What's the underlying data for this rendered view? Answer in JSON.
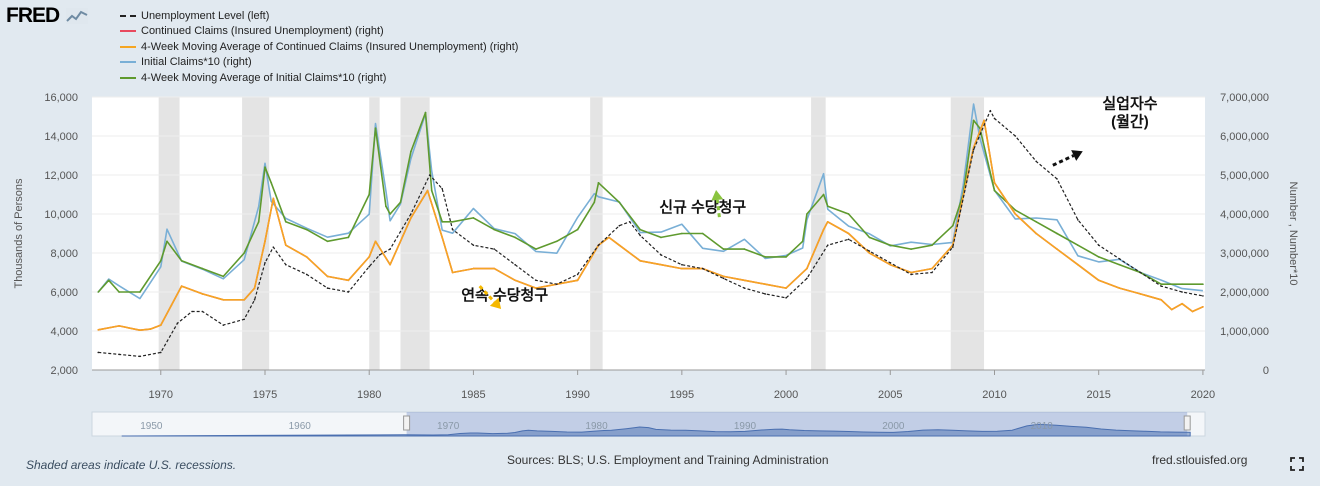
{
  "logo": "FRED",
  "legend": [
    {
      "label": "Unemployment Level (left)",
      "color": "#222222",
      "dash": true
    },
    {
      "label": "Continued Claims (Insured Unemployment) (right)",
      "color": "#e84a5f",
      "dash": false
    },
    {
      "label": "4-Week Moving Average of Continued Claims (Insured Unemployment) (right)",
      "color": "#f5a623",
      "dash": false
    },
    {
      "label": "Initial Claims*10 (right)",
      "color": "#79afd6",
      "dash": false
    },
    {
      "label": "4-Week Moving Average of Initial Claims*10 (right)",
      "color": "#5f9a2e",
      "dash": false
    }
  ],
  "footer": {
    "left": "Shaded areas indicate U.S. recessions.",
    "middle": "Sources: BLS; U.S. Employment and Training Administration",
    "right": "fred.stlouisfed.org"
  },
  "annotations": [
    {
      "text": "신규 수당청구",
      "color": "#8ac43f",
      "x": 1996,
      "y": 4050000
    },
    {
      "text": "연속 수당청구",
      "color": "#f5b800",
      "x": 1986.5,
      "y": 1800000
    },
    {
      "text": "실업자수",
      "color": "#111111",
      "x": 2016.5,
      "y": 6700000
    },
    {
      "text": "(월간)",
      "color": "#111111",
      "x": 2016.5,
      "y": 6250000
    }
  ],
  "chart_data": {
    "type": "line",
    "x_range": [
      1966.7,
      2020.1
    ],
    "xticks": [
      1970,
      1975,
      1980,
      1985,
      1990,
      1995,
      2000,
      2005,
      2010,
      2015,
      2020
    ],
    "left_axis": {
      "label": "Thousands of Persons",
      "range": [
        2000,
        16000
      ],
      "ticks": [
        "2,000",
        "4,000",
        "6,000",
        "8,000",
        "10,000",
        "12,000",
        "14,000",
        "16,000"
      ]
    },
    "right_axis": {
      "label": "Number , Number*10",
      "range": [
        0,
        7000000
      ],
      "ticks": [
        "0",
        "1,000,000",
        "2,000,000",
        "3,000,000",
        "4,000,000",
        "5,000,000",
        "6,000,000",
        "7,000,000"
      ]
    },
    "recessions": [
      [
        1969.9,
        1970.9
      ],
      [
        1973.9,
        1975.2
      ],
      [
        1980.0,
        1980.5
      ],
      [
        1981.5,
        1982.9
      ],
      [
        1990.6,
        1991.2
      ],
      [
        2001.2,
        2001.9
      ],
      [
        2007.9,
        2009.5
      ]
    ],
    "series": [
      {
        "name": "Unemployment Level (left)",
        "axis": "left",
        "style": "dash",
        "color": "#222222",
        "x": [
          1967,
          1968,
          1969,
          1970,
          1970.8,
          1971.5,
          1972,
          1973,
          1974,
          1974.5,
          1975,
          1975.4,
          1976,
          1977,
          1978,
          1979,
          1980,
          1980.5,
          1981,
          1982,
          1982.9,
          1983.5,
          1984,
          1985,
          1986,
          1987,
          1988,
          1989,
          1990,
          1991,
          1992,
          1992.5,
          1993,
          1994,
          1995,
          1996,
          1997,
          1998,
          1999,
          2000,
          2001,
          2002,
          2003,
          2004,
          2005,
          2006,
          2007,
          2008,
          2009,
          2009.8,
          2010,
          2011,
          2012,
          2013,
          2014,
          2015,
          2016,
          2017,
          2018,
          2019,
          2020
        ],
        "y": [
          2900,
          2800,
          2700,
          2900,
          4400,
          5000,
          5000,
          4300,
          4600,
          5600,
          7500,
          8300,
          7400,
          6900,
          6200,
          6000,
          7300,
          7900,
          8200,
          10000,
          12000,
          11300,
          9200,
          8400,
          8200,
          7400,
          6600,
          6400,
          6900,
          8400,
          9400,
          9600,
          8900,
          7900,
          7400,
          7200,
          6700,
          6200,
          5900,
          5700,
          6700,
          8400,
          8700,
          8100,
          7500,
          6900,
          7000,
          8300,
          13300,
          15300,
          14900,
          14000,
          12700,
          11800,
          9700,
          8400,
          7700,
          7000,
          6300,
          6000,
          5800
        ]
      },
      {
        "name": "Continued Claims (Insured Unemployment) (right)",
        "axis": "right",
        "style": "solid",
        "color": "#e84a5f",
        "x": [
          1967,
          1968,
          1969,
          1969.5,
          1970,
          1970.5,
          1971,
          1972,
          1973,
          1974,
          1974.5,
          1975,
          1975.4,
          1976,
          1977,
          1978,
          1979,
          1980,
          1980.3,
          1981,
          1982,
          1982.8,
          1983.5,
          1984,
          1985,
          1986,
          1987,
          1988,
          1989,
          1990,
          1991,
          1991.5,
          1992,
          1993,
          1994,
          1995,
          1996,
          1997,
          1998,
          1999,
          2000,
          2001,
          2001.8,
          2002,
          2003,
          2004,
          2005,
          2006,
          2007,
          2008,
          2009,
          2009.5,
          2010,
          2011,
          2012,
          2013,
          2014,
          2015,
          2016,
          2017,
          2018,
          2018.5,
          2019,
          2019.5,
          2020
        ],
        "y": [
          1030000,
          1130000,
          1020000,
          1050000,
          1150000,
          1650000,
          2150000,
          1950000,
          1800000,
          1800000,
          2100000,
          3300000,
          4400000,
          3200000,
          2900000,
          2400000,
          2300000,
          2900000,
          3300000,
          2700000,
          3900000,
          4600000,
          3400000,
          2500000,
          2600000,
          2600000,
          2300000,
          2100000,
          2200000,
          2300000,
          3200000,
          3400000,
          3200000,
          2800000,
          2700000,
          2600000,
          2600000,
          2400000,
          2300000,
          2200000,
          2100000,
          2600000,
          3600000,
          3800000,
          3500000,
          3000000,
          2700000,
          2500000,
          2600000,
          3200000,
          5700000,
          6400000,
          4800000,
          4000000,
          3500000,
          3100000,
          2700000,
          2300000,
          2100000,
          1950000,
          1800000,
          1550000,
          1700000,
          1500000,
          1620000
        ]
      },
      {
        "name": "4-Week Moving Average of Continued Claims (Insured Unemployment) (right)",
        "axis": "right",
        "style": "solid",
        "color": "#f5a623",
        "x": [
          1967,
          1968,
          1969,
          1969.5,
          1970,
          1970.5,
          1971,
          1972,
          1973,
          1974,
          1974.5,
          1975,
          1975.4,
          1976,
          1977,
          1978,
          1979,
          1980,
          1980.3,
          1981,
          1982,
          1982.8,
          1983.5,
          1984,
          1985,
          1986,
          1987,
          1988,
          1989,
          1990,
          1991,
          1991.5,
          1992,
          1993,
          1994,
          1995,
          1996,
          1997,
          1998,
          1999,
          2000,
          2001,
          2001.8,
          2002,
          2003,
          2004,
          2005,
          2006,
          2007,
          2008,
          2009,
          2009.5,
          2010,
          2011,
          2012,
          2013,
          2014,
          2015,
          2016,
          2017,
          2018,
          2018.5,
          2019,
          2019.5,
          2020
        ],
        "y": [
          1030000,
          1130000,
          1020000,
          1050000,
          1150000,
          1650000,
          2150000,
          1950000,
          1800000,
          1800000,
          2100000,
          3300000,
          4400000,
          3200000,
          2900000,
          2400000,
          2300000,
          2900000,
          3300000,
          2700000,
          3900000,
          4600000,
          3400000,
          2500000,
          2600000,
          2600000,
          2300000,
          2100000,
          2200000,
          2300000,
          3200000,
          3400000,
          3200000,
          2800000,
          2700000,
          2600000,
          2600000,
          2400000,
          2300000,
          2200000,
          2100000,
          2600000,
          3600000,
          3800000,
          3500000,
          3000000,
          2700000,
          2500000,
          2600000,
          3200000,
          5700000,
          6400000,
          4800000,
          4000000,
          3500000,
          3100000,
          2700000,
          2300000,
          2100000,
          1950000,
          1800000,
          1550000,
          1700000,
          1500000,
          1620000
        ]
      },
      {
        "name": "Initial Claims*10 (right)",
        "axis": "right",
        "style": "solid",
        "color": "#79afd6",
        "x": [
          1967,
          1967.5,
          1968,
          1969,
          1970,
          1970.3,
          1971,
          1972,
          1973,
          1974,
          1974.7,
          1975,
          1975.3,
          1976,
          1977,
          1978,
          1979,
          1980,
          1980.3,
          1980.8,
          1981,
          1981.5,
          1982,
          1982.7,
          1983,
          1983.5,
          1984,
          1985,
          1986,
          1987,
          1988,
          1989,
          1990,
          1990.8,
          1991,
          1992,
          1993,
          1994,
          1995,
          1996,
          1997,
          1998,
          1999,
          2000,
          2000.8,
          2001,
          2001.8,
          2002,
          2003,
          2004,
          2005,
          2006,
          2007,
          2008,
          2008.5,
          2009,
          2009.3,
          2010,
          2011,
          2012,
          2013,
          2014,
          2015,
          2016,
          2017,
          2018,
          2019,
          2020
        ],
        "y": [
          2000000,
          2300000,
          2000000,
          2000000,
          2800000,
          3300000,
          2800000,
          2600000,
          2400000,
          3000000,
          3800000,
          5200000,
          4800000,
          3800000,
          3600000,
          3300000,
          3400000,
          4500000,
          6200000,
          4200000,
          4000000,
          4300000,
          5600000,
          6600000,
          4600000,
          3800000,
          3800000,
          3900000,
          3600000,
          3400000,
          3100000,
          3300000,
          3600000,
          4300000,
          4800000,
          4300000,
          3600000,
          3400000,
          3500000,
          3500000,
          3100000,
          3100000,
          2900000,
          2900000,
          3300000,
          4000000,
          4500000,
          4200000,
          4000000,
          3400000,
          3200000,
          3100000,
          3200000,
          3700000,
          4500000,
          6400000,
          6200000,
          4600000,
          4100000,
          3800000,
          3500000,
          3200000,
          2900000,
          2700000,
          2500000,
          2200000,
          2200000,
          2200000
        ]
      },
      {
        "name": "4-Week Moving Average of Initial Claims*10 (right)",
        "axis": "right",
        "style": "solid",
        "color": "#5f9a2e",
        "x": [
          1967,
          1967.5,
          1968,
          1969,
          1970,
          1970.3,
          1971,
          1972,
          1973,
          1974,
          1974.7,
          1975,
          1975.3,
          1976,
          1977,
          1978,
          1979,
          1980,
          1980.3,
          1980.8,
          1981,
          1981.5,
          1982,
          1982.7,
          1983,
          1983.5,
          1984,
          1985,
          1986,
          1987,
          1988,
          1989,
          1990,
          1990.8,
          1991,
          1992,
          1993,
          1994,
          1995,
          1996,
          1997,
          1998,
          1999,
          2000,
          2000.8,
          2001,
          2001.8,
          2002,
          2003,
          2004,
          2005,
          2006,
          2007,
          2008,
          2008.5,
          2009,
          2009.3,
          2010,
          2011,
          2012,
          2013,
          2014,
          2015,
          2016,
          2017,
          2018,
          2019,
          2020
        ],
        "y": [
          2000000,
          2300000,
          2000000,
          2000000,
          2800000,
          3300000,
          2800000,
          2600000,
          2400000,
          3000000,
          3800000,
          5200000,
          4800000,
          3800000,
          3600000,
          3300000,
          3400000,
          4500000,
          6200000,
          4200000,
          4000000,
          4300000,
          5600000,
          6600000,
          4600000,
          3800000,
          3800000,
          3900000,
          3600000,
          3400000,
          3100000,
          3300000,
          3600000,
          4300000,
          4800000,
          4300000,
          3600000,
          3400000,
          3500000,
          3500000,
          3100000,
          3100000,
          2900000,
          2900000,
          3300000,
          4000000,
          4500000,
          4200000,
          4000000,
          3400000,
          3200000,
          3100000,
          3200000,
          3700000,
          4500000,
          6400000,
          6200000,
          4600000,
          4100000,
          3800000,
          3500000,
          3200000,
          2900000,
          2700000,
          2500000,
          2200000,
          2200000,
          2200000
        ]
      }
    ]
  },
  "navigator": {
    "xticks": [
      "1950",
      "1960",
      "1970",
      "1980",
      "1990",
      "2000",
      "2010"
    ]
  }
}
